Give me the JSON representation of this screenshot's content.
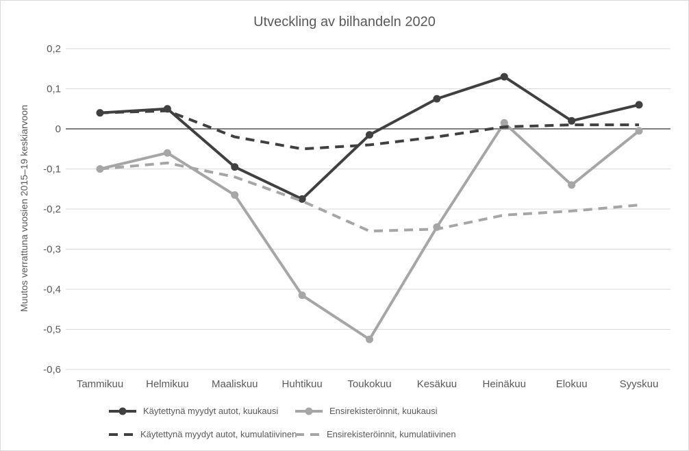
{
  "chart_data": {
    "type": "line",
    "title": "Utveckling av bilhandeln 2020",
    "ylabel": "Muutos verrattuna vuosien 2015–19 keskiarvoon",
    "categories": [
      "Tammikuu",
      "Helmikuu",
      "Maaliskuu",
      "Huhtikuu",
      "Toukokuu",
      "Kesäkuu",
      "Heinäkuu",
      "Elokuu",
      "Syyskuu"
    ],
    "y_ticks": [
      "0,2",
      "0,1",
      "0",
      "-0,1",
      "-0,2",
      "-0,3",
      "-0,4",
      "-0,5",
      "-0,6"
    ],
    "ylim": [
      -0.6,
      0.2
    ],
    "grid": true,
    "zero_line": true,
    "legend_position": "bottom",
    "series": [
      {
        "name": "Käytettynä myydyt autot, kuukausi",
        "style": "solid",
        "markers": true,
        "color": "#404040",
        "values": [
          0.04,
          0.05,
          -0.095,
          -0.175,
          -0.015,
          0.075,
          0.13,
          0.02,
          0.06
        ]
      },
      {
        "name": "Ensirekisteröinnit, kuukausi",
        "style": "solid",
        "markers": true,
        "color": "#a6a6a6",
        "values": [
          -0.1,
          -0.06,
          -0.165,
          -0.415,
          -0.525,
          -0.245,
          0.015,
          -0.14,
          -0.005
        ]
      },
      {
        "name": "Käytettynä myydyt autot, kumulatiivinen",
        "style": "dashed",
        "markers": false,
        "color": "#404040",
        "values": [
          0.04,
          0.045,
          -0.02,
          -0.05,
          -0.04,
          -0.02,
          0.005,
          0.01,
          0.01
        ]
      },
      {
        "name": "Ensirekisteröinnit, kumulatiivinen",
        "style": "dashed",
        "markers": false,
        "color": "#a6a6a6",
        "values": [
          -0.1,
          -0.085,
          -0.12,
          -0.18,
          -0.255,
          -0.25,
          -0.215,
          -0.205,
          -0.19
        ]
      }
    ],
    "colors": {
      "text": "#595959",
      "gridline": "#d9d9d9",
      "zero_line": "#7f7f7f",
      "background": "#ffffff",
      "border": "#d9d9d9"
    }
  }
}
